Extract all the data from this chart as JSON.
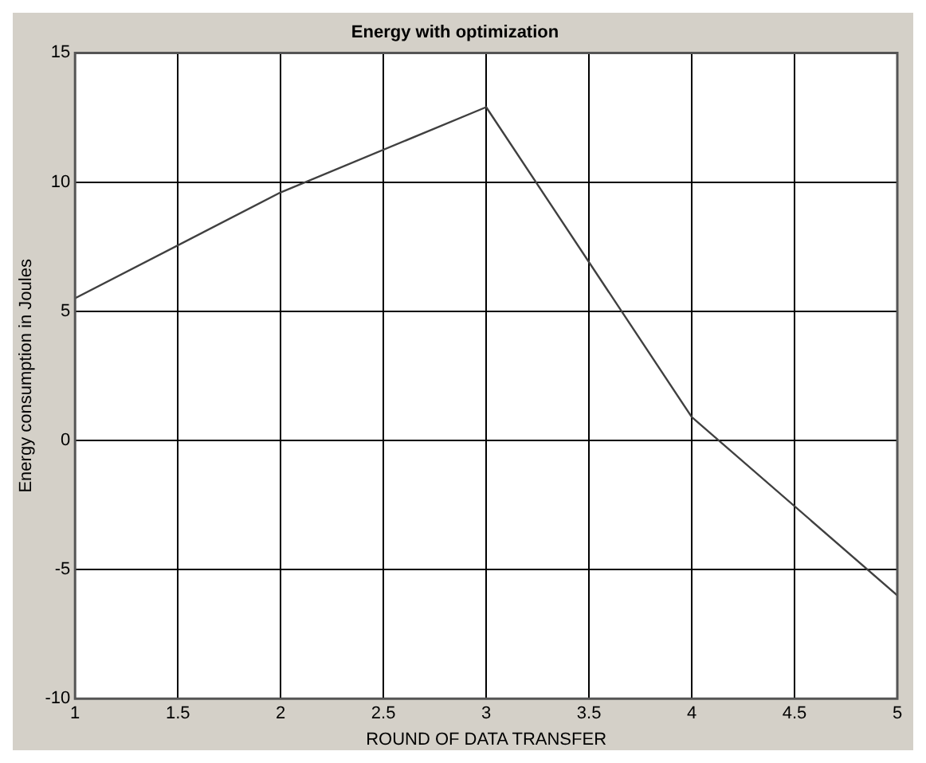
{
  "chart_data": {
    "type": "line",
    "title": "Energy with optimization",
    "xlabel": "ROUND OF DATA TRANSFER",
    "ylabel": "Energy consumption in Joules",
    "x": [
      1,
      2,
      3,
      4,
      5
    ],
    "series": [
      {
        "color": "#404040",
        "values": [
          5.5,
          9.6,
          12.9,
          0.9,
          -6.0
        ]
      }
    ],
    "xlim": [
      1,
      5
    ],
    "xticks": [
      1,
      1.5,
      2,
      2.5,
      3,
      3.5,
      4,
      4.5,
      5
    ],
    "ylim": [
      -10,
      15
    ],
    "yticks": [
      -10,
      -5,
      0,
      5,
      10,
      15
    ],
    "grid": true,
    "legend": false,
    "marker": "none",
    "line_style": "solid"
  }
}
